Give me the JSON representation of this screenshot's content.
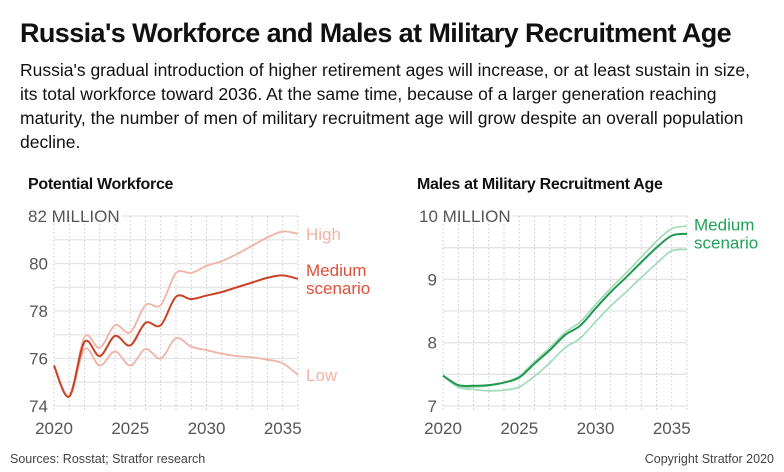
{
  "title": "Russia's Workforce and Males at Military Recruitment Age",
  "subtitle": "Russia's gradual introduction of higher retirement ages will increase, or at least sustain in size, its total workforce toward 2036. At the same time, because of a larger generation reaching maturity, the number of men of military recruitment age will grow despite an overall population decline.",
  "footer": {
    "sources": "Sources: Rosstat; Stratfor research",
    "copyright": "Copyright Stratfor 2020"
  },
  "chart_data": [
    {
      "type": "line",
      "title": "Potential Workforce",
      "ylim": [
        74,
        82
      ],
      "xlim": [
        2020,
        2036
      ],
      "grid": true,
      "yticks": [
        {
          "v": 74,
          "label": "74"
        },
        {
          "v": 76,
          "label": "76"
        },
        {
          "v": 78,
          "label": "78"
        },
        {
          "v": 80,
          "label": "80"
        },
        {
          "v": 82,
          "label": "82 MILLION"
        }
      ],
      "xticks": [
        {
          "v": 2020,
          "label": "2020"
        },
        {
          "v": 2025,
          "label": "2025"
        },
        {
          "v": 2030,
          "label": "2030"
        },
        {
          "v": 2035,
          "label": "2035"
        }
      ],
      "x": [
        2020,
        2021,
        2022,
        2023,
        2024,
        2025,
        2026,
        2027,
        2028,
        2029,
        2030,
        2031,
        2032,
        2033,
        2034,
        2035,
        2036
      ],
      "series": [
        {
          "name": "High",
          "color": "#f0b3a6",
          "values": [
            75.7,
            74.4,
            76.9,
            76.45,
            77.4,
            77.1,
            78.25,
            78.25,
            79.6,
            79.6,
            79.9,
            80.1,
            80.4,
            80.75,
            81.1,
            81.35,
            81.25
          ]
        },
        {
          "name": "Low",
          "color": "#f0b3a6",
          "values": [
            75.7,
            74.4,
            76.4,
            75.7,
            76.3,
            75.7,
            76.4,
            76.0,
            76.85,
            76.5,
            76.35,
            76.2,
            76.1,
            76.05,
            75.95,
            75.8,
            75.3
          ]
        },
        {
          "name": "Medium scenario",
          "label_lines": [
            "Medium",
            "scenario"
          ],
          "color": "#c94328",
          "label_color": "#e0503a",
          "values": [
            75.7,
            74.4,
            76.7,
            76.1,
            76.95,
            76.55,
            77.5,
            77.4,
            78.6,
            78.5,
            78.65,
            78.8,
            79.0,
            79.2,
            79.4,
            79.5,
            79.35
          ]
        }
      ]
    },
    {
      "type": "line",
      "title": "Males at Military Recruitment Age",
      "ylim": [
        7,
        10
      ],
      "xlim": [
        2020,
        2036
      ],
      "grid": true,
      "yticks": [
        {
          "v": 7,
          "label": "7"
        },
        {
          "v": 8,
          "label": "8"
        },
        {
          "v": 9,
          "label": "9"
        },
        {
          "v": 10,
          "label": "10 MILLION"
        }
      ],
      "xticks": [
        {
          "v": 2020,
          "label": "2020"
        },
        {
          "v": 2025,
          "label": "2025"
        },
        {
          "v": 2030,
          "label": "2030"
        },
        {
          "v": 2035,
          "label": "2035"
        }
      ],
      "x": [
        2020,
        2021,
        2022,
        2023,
        2024,
        2025,
        2026,
        2027,
        2028,
        2029,
        2030,
        2031,
        2032,
        2033,
        2034,
        2035,
        2036
      ],
      "series": [
        {
          "color": "#a6dcbc",
          "values": [
            7.48,
            7.3,
            7.3,
            7.32,
            7.37,
            7.47,
            7.7,
            7.92,
            8.16,
            8.33,
            8.6,
            8.86,
            9.1,
            9.35,
            9.6,
            9.8,
            9.84
          ]
        },
        {
          "color": "#a6dcbc",
          "values": [
            7.48,
            7.3,
            7.26,
            7.24,
            7.25,
            7.3,
            7.47,
            7.68,
            7.92,
            8.07,
            8.33,
            8.58,
            8.8,
            9.03,
            9.25,
            9.45,
            9.47
          ]
        },
        {
          "name": "Medium scenario",
          "label_lines": [
            "Medium",
            "scenario"
          ],
          "color": "#21984f",
          "label_color": "#21a257",
          "values": [
            7.48,
            7.33,
            7.32,
            7.33,
            7.37,
            7.45,
            7.67,
            7.88,
            8.12,
            8.27,
            8.54,
            8.8,
            9.03,
            9.27,
            9.5,
            9.69,
            9.72
          ]
        }
      ]
    }
  ]
}
